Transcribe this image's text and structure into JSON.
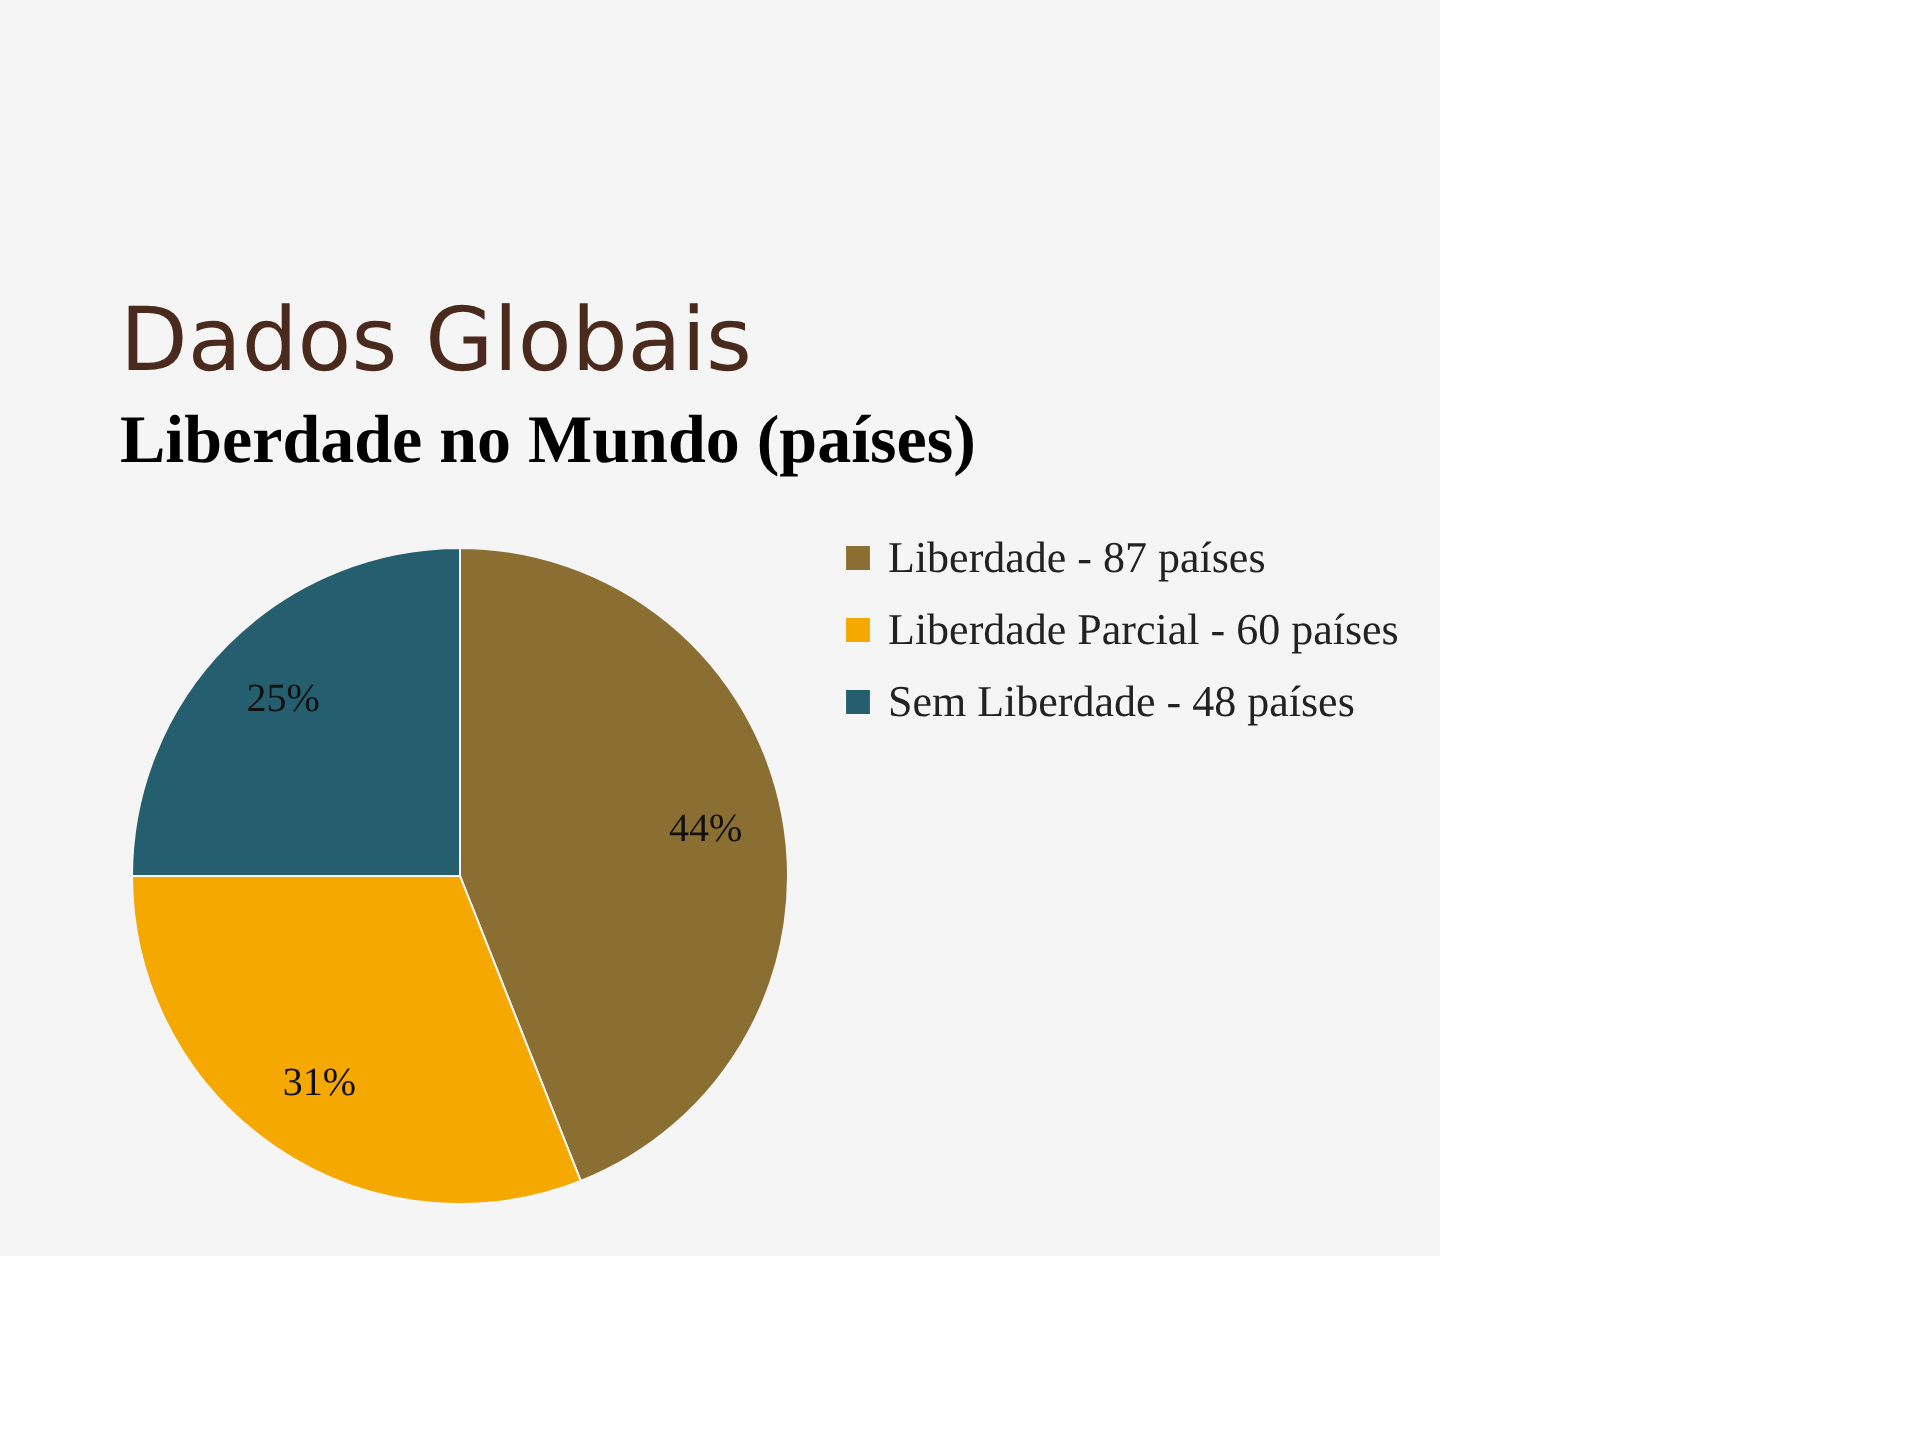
{
  "chart_data": {
    "type": "pie",
    "title": "Dados Globais",
    "subtitle": "Liberdade no Mundo (países)",
    "categories": [
      "Liberdade - 87 países",
      "Liberdade Parcial - 60 países",
      "Sem Liberdade - 48 países"
    ],
    "values": [
      44,
      31,
      25
    ],
    "colors": [
      "#8b6f32",
      "#f5a800",
      "#255e6e"
    ],
    "value_labels": [
      "44%",
      "31%",
      "25%"
    ],
    "legend": "right"
  }
}
